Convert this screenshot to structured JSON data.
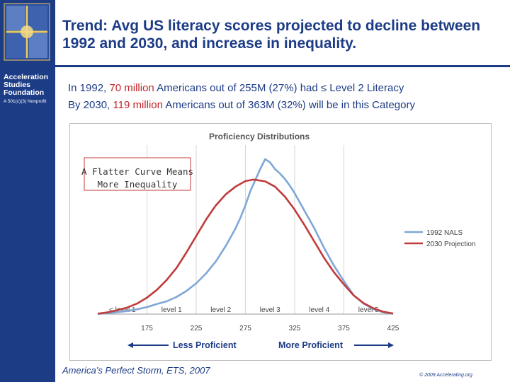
{
  "sidebar": {
    "org_name": "Acceleration Studies Foundation",
    "org_subtitle": "A 501(c)(3) Nonprofit"
  },
  "slide": {
    "title": "Trend: Avg US literacy scores projected to decline between 1992 and 2030, and increase in inequality.",
    "line1": {
      "pre": "In 1992, ",
      "highlight": "70 million",
      "post": " Americans out of 255M (27%) had ≤ Level 2 Literacy"
    },
    "line2": {
      "pre": "By 2030, ",
      "highlight": "119 million",
      "post": " Americans out of 363M (32%) will be in this Category"
    },
    "left_arrow_label": "Less Proficient",
    "right_arrow_label": "More Proficient",
    "source": "America’s Perfect Storm, ETS, 2007",
    "copyright": "© 2009 Accelerating.org"
  },
  "colors": {
    "brand_blue": "#1d3c86",
    "highlight_red": "#c0272d",
    "nals_1992": "#7fa7d6",
    "projection_2030": "#c03b3b"
  },
  "chart_data": {
    "type": "line",
    "title": "Proficiency Distributions",
    "xlabel": "",
    "ylabel": "",
    "xlim": [
      125,
      425
    ],
    "x_ticks": [
      175,
      225,
      275,
      325,
      375,
      425
    ],
    "grid": "vertical",
    "legend_position": "right",
    "annotation": "A Flatter Curve Means More Inequality",
    "level_labels": [
      {
        "label": "< level 1",
        "x": 150
      },
      {
        "label": "level 1",
        "x": 200
      },
      {
        "label": "level 2",
        "x": 250
      },
      {
        "label": "level 3",
        "x": 300
      },
      {
        "label": "level 4",
        "x": 350
      },
      {
        "label": "level 5",
        "x": 400
      }
    ],
    "level_boundaries": [
      175,
      225,
      275,
      325,
      375
    ],
    "series": [
      {
        "name": "1992 NALS",
        "color": "#7fa7d6",
        "x": [
          125,
          135,
          145,
          155,
          165,
          175,
          185,
          195,
          205,
          215,
          225,
          235,
          245,
          255,
          265,
          270,
          275,
          280,
          285,
          290,
          295,
          300,
          305,
          310,
          315,
          320,
          325,
          335,
          345,
          355,
          365,
          375,
          385,
          395,
          405,
          415,
          425
        ],
        "y": [
          0.1,
          0.4,
          0.9,
          1.4,
          2.2,
          3.2,
          4.6,
          5.8,
          7.8,
          10.5,
          14,
          18.5,
          24,
          31,
          39,
          44,
          49.5,
          56,
          61,
          66,
          70.5,
          69,
          66,
          64,
          61.5,
          58.5,
          55,
          47,
          39,
          30,
          22,
          15,
          8.5,
          4.8,
          2.3,
          0.8,
          0.1
        ]
      },
      {
        "name": "2030 Projection",
        "color": "#c03b3b",
        "x": [
          125,
          135,
          145,
          155,
          165,
          175,
          185,
          195,
          205,
          215,
          225,
          235,
          245,
          255,
          265,
          275,
          283,
          285,
          295,
          305,
          315,
          325,
          335,
          345,
          355,
          365,
          375,
          385,
          395,
          405,
          415,
          425
        ],
        "y": [
          0.2,
          0.8,
          1.8,
          3,
          4.8,
          7.5,
          11,
          15.5,
          21,
          28,
          35.5,
          43,
          49.5,
          54.5,
          58,
          60.5,
          61.2,
          61.1,
          60.4,
          58,
          53.5,
          47.5,
          40.5,
          33,
          25.5,
          19,
          13.5,
          8.5,
          5,
          2.6,
          1.1,
          0.3
        ]
      }
    ]
  }
}
